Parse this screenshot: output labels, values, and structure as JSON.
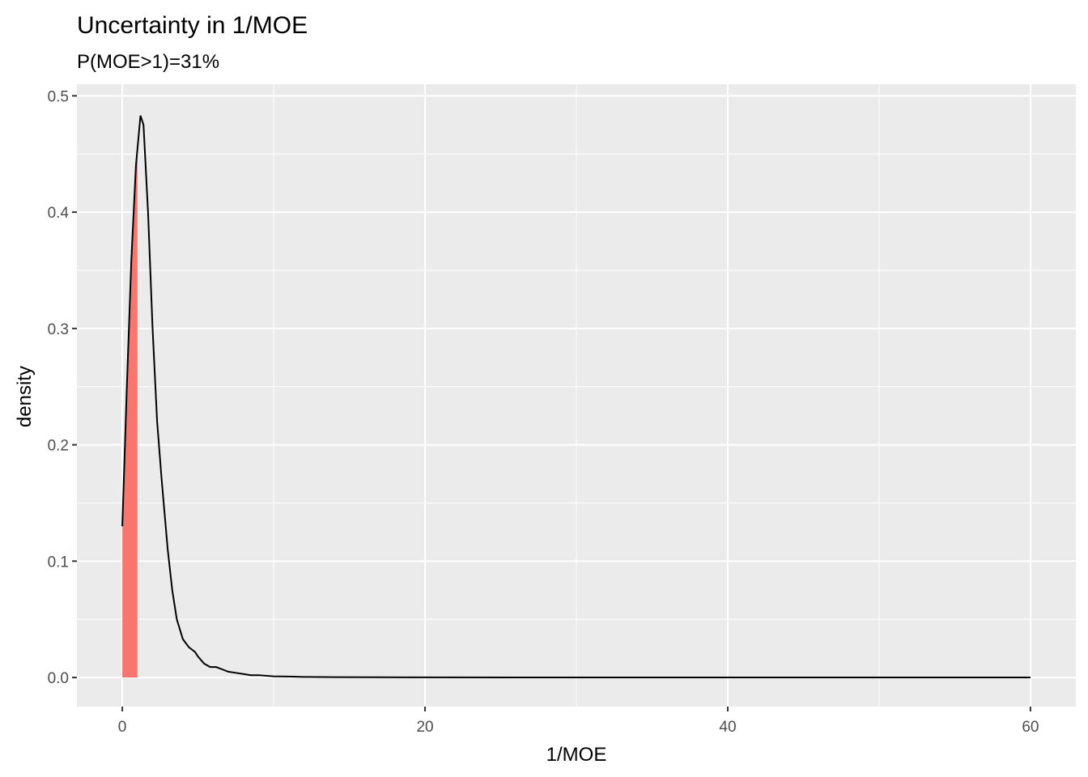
{
  "chart_data": {
    "type": "area",
    "title": "Uncertainty in 1/MOE",
    "subtitle": "P(MOE>1)=31%",
    "xlabel": "1/MOE",
    "ylabel": "density",
    "xlim": [
      -3,
      63
    ],
    "ylim": [
      -0.025,
      0.51
    ],
    "x_ticks": [
      0,
      20,
      40,
      60
    ],
    "x_tick_labels": [
      "0",
      "20",
      "40",
      "60"
    ],
    "y_ticks": [
      0.0,
      0.1,
      0.2,
      0.3,
      0.4,
      0.5
    ],
    "y_tick_labels": [
      "0.0",
      "0.1",
      "0.2",
      "0.3",
      "0.4",
      "0.5"
    ],
    "grid": true,
    "colors": {
      "panel_background": "#EBEBEB",
      "grid": "#FFFFFF",
      "density_line": "#000000",
      "highlight_fill": "#F8766D"
    },
    "series": [
      {
        "x": [
          0.0,
          0.3,
          0.6,
          0.9,
          1.2,
          1.4,
          1.7,
          2.0,
          2.3,
          2.6,
          3.0,
          3.3,
          3.6,
          4.0,
          4.4,
          4.8,
          5.0,
          5.4,
          5.8,
          6.2,
          6.6,
          7.0,
          7.5,
          8.0,
          8.5,
          9.0,
          10.0,
          11.0,
          12.0,
          14.0,
          20.0,
          30.0,
          40.0,
          50.0,
          60.0
        ],
        "y": [
          0.13,
          0.25,
          0.36,
          0.44,
          0.483,
          0.475,
          0.4,
          0.3,
          0.22,
          0.17,
          0.11,
          0.075,
          0.05,
          0.033,
          0.026,
          0.022,
          0.018,
          0.012,
          0.009,
          0.009,
          0.007,
          0.005,
          0.004,
          0.003,
          0.002,
          0.002,
          0.001,
          0.0008,
          0.0005,
          0.0003,
          0.0001,
          5e-05,
          3e-05,
          2e-05,
          1e-05
        ]
      }
    ],
    "highlight_region": {
      "x_range": [
        0.0,
        1.0
      ],
      "label_text": "P(MOE>1)=31%"
    }
  }
}
